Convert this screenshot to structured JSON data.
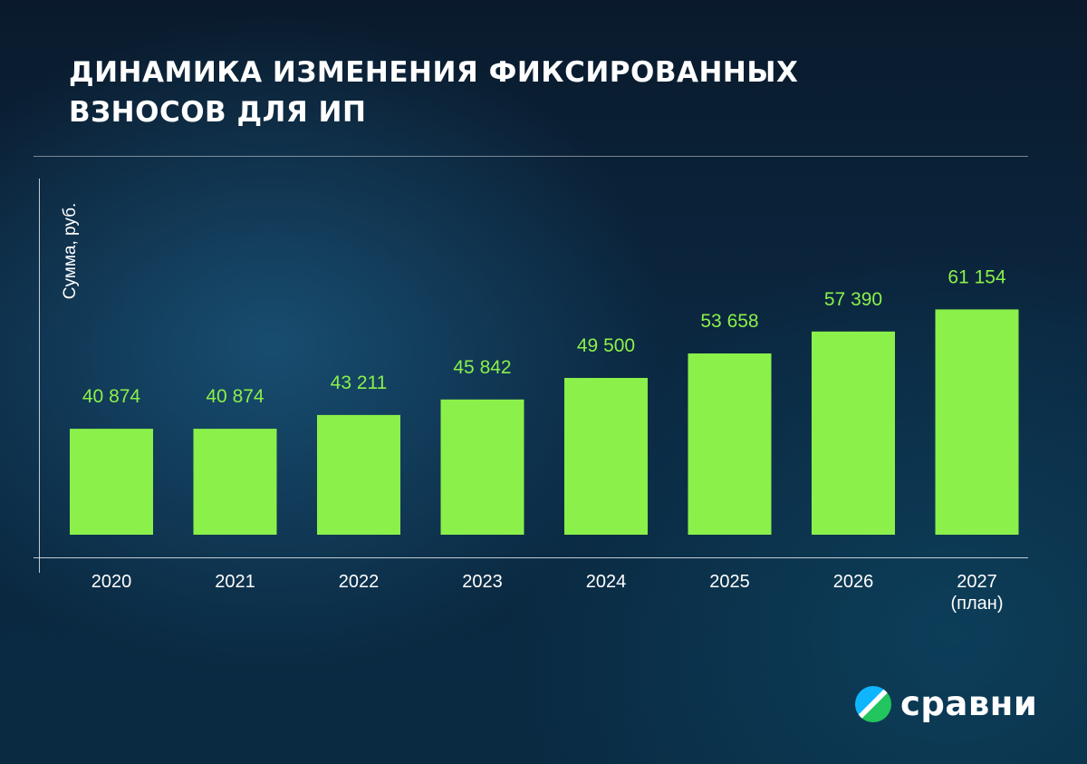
{
  "header": {
    "title": "ДИНАМИКА ИЗМЕНЕНИЯ ФИКСИРОВАННЫХ ВЗНОСОВ ДЛЯ ИП"
  },
  "brand": {
    "name": "сравни",
    "icon": "sravni-logo-icon"
  },
  "colors": {
    "bar": "#8bf04a",
    "value_label": "#8bf04a",
    "text": "#ffffff"
  },
  "chart_data": {
    "type": "bar",
    "title": "ДИНАМИКА ИЗМЕНЕНИЯ ФИКСИРОВАННЫХ ВЗНОСОВ ДЛЯ ИП",
    "xlabel": "",
    "ylabel": "Сумма, руб.",
    "categories": [
      "2020",
      "2021",
      "2022",
      "2023",
      "2024",
      "2025",
      "2026",
      "2027"
    ],
    "category_sublabels": [
      "",
      "",
      "",
      "",
      "",
      "",
      "",
      "(план)"
    ],
    "values": [
      40874,
      40874,
      43211,
      45842,
      49500,
      53658,
      57390,
      61154
    ],
    "value_labels": [
      "40 874",
      "40 874",
      "43 211",
      "45 842",
      "49 500",
      "53 658",
      "57 390",
      "61 154"
    ],
    "grid": false,
    "legend": "none"
  }
}
